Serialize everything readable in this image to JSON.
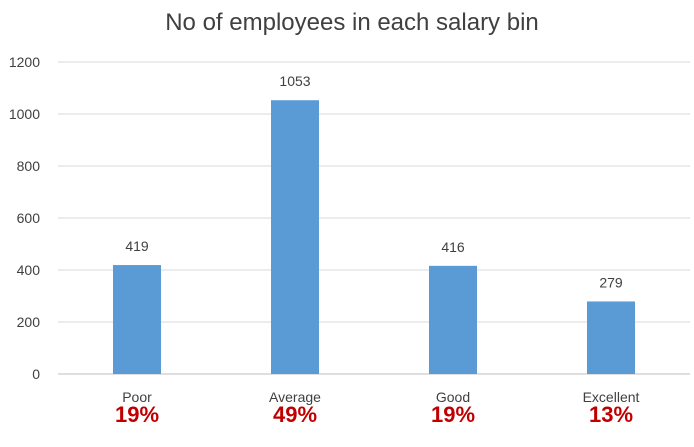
{
  "chart_data": {
    "type": "bar",
    "title": "No of employees in each salary bin",
    "categories": [
      "Poor",
      "Average",
      "Good",
      "Excellent"
    ],
    "values": [
      419,
      1053,
      416,
      279
    ],
    "percent_labels": [
      "19%",
      "49%",
      "19%",
      "13%"
    ],
    "ylim": [
      0,
      1200
    ],
    "yticks": [
      "0",
      "200",
      "400",
      "600",
      "800",
      "1000",
      "1200"
    ],
    "grid": true,
    "legend": "none",
    "colors": {
      "bar": "#5b9bd5",
      "percent_text": "#c00000",
      "text": "#404040",
      "grid": "#d9d9d9"
    }
  }
}
